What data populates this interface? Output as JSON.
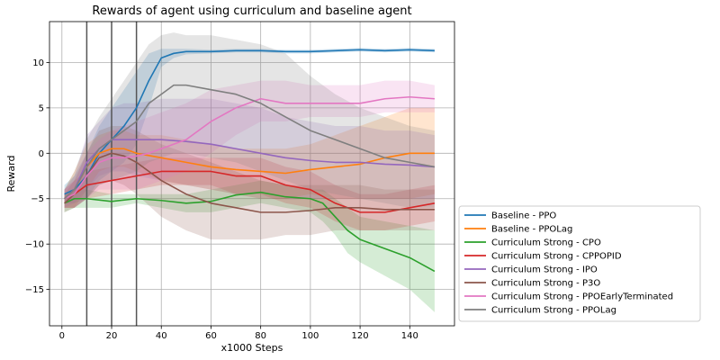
{
  "chart_data": {
    "type": "line",
    "title": "Rewards of agent using curriculum and baseline agent",
    "xlabel": "x1000 Steps",
    "ylabel": "Reward",
    "xlim": [
      -5,
      158
    ],
    "ylim": [
      -19,
      14.5
    ],
    "xticks": [
      0,
      20,
      40,
      60,
      80,
      100,
      120,
      140
    ],
    "yticks": [
      -15,
      -10,
      -5,
      0,
      5,
      10
    ],
    "grid": true,
    "legend_position": "outside-right-bottom",
    "vlines": [
      10,
      20,
      30
    ],
    "series": [
      {
        "name": "Baseline - PPO",
        "color": "#1f77b4",
        "x": [
          1,
          5,
          10,
          15,
          20,
          25,
          30,
          35,
          40,
          45,
          50,
          60,
          70,
          80,
          90,
          100,
          110,
          120,
          130,
          140,
          150
        ],
        "y": [
          -4.5,
          -4,
          -2.5,
          0,
          1.5,
          3,
          5,
          8,
          10.5,
          11,
          11.2,
          11.2,
          11.3,
          11.3,
          11.2,
          11.2,
          11.3,
          11.4,
          11.3,
          11.4,
          11.3
        ],
        "band": [
          [
            -5.5,
            -3.5
          ],
          [
            -5.5,
            -2.5
          ],
          [
            -5,
            0
          ],
          [
            -3,
            3
          ],
          [
            -2,
            5
          ],
          [
            -1,
            7
          ],
          [
            1,
            9
          ],
          [
            5,
            11
          ],
          [
            9.5,
            11.5
          ],
          [
            10.5,
            11.5
          ],
          [
            10.9,
            11.5
          ],
          [
            11,
            11.4
          ],
          [
            11.1,
            11.5
          ],
          [
            11.1,
            11.5
          ],
          [
            11,
            11.4
          ],
          [
            11,
            11.4
          ],
          [
            11.1,
            11.5
          ],
          [
            11.2,
            11.6
          ],
          [
            11.1,
            11.5
          ],
          [
            11.2,
            11.6
          ],
          [
            11.1,
            11.5
          ]
        ]
      },
      {
        "name": "Baseline - PPOLag",
        "color": "#ff7f0e",
        "x": [
          1,
          5,
          10,
          15,
          20,
          25,
          30,
          40,
          50,
          60,
          70,
          80,
          90,
          100,
          110,
          120,
          130,
          140,
          150
        ],
        "y": [
          -5,
          -4,
          -1.5,
          0,
          0.5,
          0.5,
          0,
          -0.5,
          -1,
          -1.5,
          -1.8,
          -2,
          -2.2,
          -1.8,
          -1.5,
          -1.2,
          -0.5,
          0,
          0
        ],
        "band": [
          [
            -6,
            -4
          ],
          [
            -6,
            -2
          ],
          [
            -4,
            1
          ],
          [
            -2,
            2
          ],
          [
            -1.5,
            2.5
          ],
          [
            -1.5,
            2.5
          ],
          [
            -2,
            2
          ],
          [
            -3,
            2
          ],
          [
            -3.5,
            1.5
          ],
          [
            -4,
            1
          ],
          [
            -4.5,
            0.5
          ],
          [
            -5,
            0.5
          ],
          [
            -5,
            0.5
          ],
          [
            -4.5,
            1
          ],
          [
            -5,
            2
          ],
          [
            -5,
            3
          ],
          [
            -5,
            4
          ],
          [
            -5,
            5
          ],
          [
            -4.5,
            5
          ]
        ]
      },
      {
        "name": "Curriculum Strong - CPO",
        "color": "#2ca02c",
        "x": [
          1,
          5,
          10,
          20,
          30,
          40,
          50,
          60,
          70,
          80,
          90,
          100,
          105,
          110,
          115,
          120,
          130,
          140,
          150
        ],
        "y": [
          -5.5,
          -5,
          -5,
          -5.3,
          -5,
          -5.2,
          -5.5,
          -5.3,
          -4.6,
          -4.3,
          -4.8,
          -5,
          -5.5,
          -7,
          -8.5,
          -9.5,
          -10.5,
          -11.5,
          -13
        ],
        "band": [
          [
            -6.5,
            -4.5
          ],
          [
            -6,
            -4
          ],
          [
            -6,
            -4
          ],
          [
            -6,
            -4.5
          ],
          [
            -5.5,
            -4.5
          ],
          [
            -6,
            -4.5
          ],
          [
            -6.5,
            -4.5
          ],
          [
            -6.5,
            -4
          ],
          [
            -6,
            -3.5
          ],
          [
            -5.5,
            -3
          ],
          [
            -6,
            -3.5
          ],
          [
            -6.5,
            -4
          ],
          [
            -7.5,
            -4
          ],
          [
            -9,
            -5
          ],
          [
            -11,
            -6
          ],
          [
            -12,
            -7
          ],
          [
            -13.5,
            -7.5
          ],
          [
            -15,
            -8
          ],
          [
            -17.5,
            -8.5
          ]
        ]
      },
      {
        "name": "Curriculum Strong - CPPOPID",
        "color": "#d62728",
        "x": [
          1,
          5,
          10,
          20,
          30,
          40,
          50,
          60,
          70,
          80,
          90,
          100,
          110,
          120,
          130,
          140,
          150
        ],
        "y": [
          -5,
          -4.5,
          -3.5,
          -3,
          -2.5,
          -2,
          -2,
          -2,
          -2.5,
          -2.5,
          -3.5,
          -4,
          -5.5,
          -6.5,
          -6.5,
          -6,
          -5.5
        ],
        "band": [
          [
            -6,
            -4
          ],
          [
            -6,
            -3
          ],
          [
            -5,
            -2
          ],
          [
            -4.5,
            -1.5
          ],
          [
            -4,
            -1
          ],
          [
            -3.5,
            -0.5
          ],
          [
            -3.5,
            -0.5
          ],
          [
            -3.5,
            -0.5
          ],
          [
            -4.5,
            -0.5
          ],
          [
            -4.5,
            -0.5
          ],
          [
            -5.5,
            -1.5
          ],
          [
            -6,
            -2
          ],
          [
            -7.5,
            -3.5
          ],
          [
            -8.5,
            -4.5
          ],
          [
            -8.5,
            -4.5
          ],
          [
            -8,
            -4
          ],
          [
            -7.5,
            -3.5
          ]
        ]
      },
      {
        "name": "Curriculum Strong - IPO",
        "color": "#9467bd",
        "x": [
          1,
          5,
          10,
          15,
          20,
          25,
          30,
          40,
          50,
          60,
          70,
          80,
          90,
          100,
          110,
          120,
          130,
          140,
          150
        ],
        "y": [
          -5,
          -4,
          -1,
          0.5,
          1.5,
          1.5,
          1.5,
          1.5,
          1.3,
          1,
          0.5,
          0,
          -0.5,
          -0.8,
          -1,
          -1,
          -1.2,
          -1.3,
          -1.5
        ],
        "band": [
          [
            -6,
            -4
          ],
          [
            -5.5,
            -2.5
          ],
          [
            -4,
            2
          ],
          [
            -2.5,
            3.5
          ],
          [
            -2,
            5
          ],
          [
            -2,
            5.5
          ],
          [
            -2.5,
            5.5
          ],
          [
            -3,
            6
          ],
          [
            -3.5,
            6
          ],
          [
            -4,
            6
          ],
          [
            -4.5,
            5.5
          ],
          [
            -5,
            5
          ],
          [
            -5,
            4
          ],
          [
            -5,
            3.5
          ],
          [
            -5,
            3
          ],
          [
            -5,
            3
          ],
          [
            -5,
            2.5
          ],
          [
            -5,
            2.5
          ],
          [
            -5,
            2
          ]
        ]
      },
      {
        "name": "Curriculum Strong - P3O",
        "color": "#8c564b",
        "x": [
          1,
          5,
          10,
          15,
          20,
          25,
          30,
          40,
          50,
          60,
          70,
          80,
          90,
          100,
          110,
          120,
          130,
          140,
          150
        ],
        "y": [
          -5.5,
          -4.5,
          -2.5,
          -0.5,
          0,
          -0.3,
          -1,
          -3,
          -4.5,
          -5.5,
          -6,
          -6.5,
          -6.5,
          -6.3,
          -6,
          -6,
          -6.2,
          -6.2,
          -6.2
        ],
        "band": [
          [
            -6.5,
            -4.5
          ],
          [
            -6,
            -3
          ],
          [
            -5,
            0
          ],
          [
            -3.5,
            2.5
          ],
          [
            -3,
            3
          ],
          [
            -3.5,
            3
          ],
          [
            -4.5,
            2.5
          ],
          [
            -7,
            1
          ],
          [
            -8.5,
            0
          ],
          [
            -9.5,
            -1
          ],
          [
            -9.5,
            -2
          ],
          [
            -9.5,
            -3
          ],
          [
            -9,
            -3.5
          ],
          [
            -9,
            -3.5
          ],
          [
            -8.5,
            -3.5
          ],
          [
            -8.5,
            -3.5
          ],
          [
            -8.5,
            -4
          ],
          [
            -8.5,
            -4
          ],
          [
            -8.5,
            -4
          ]
        ]
      },
      {
        "name": "Curriculum Strong - PPOEarlyTerminated",
        "color": "#e377c2",
        "x": [
          1,
          5,
          10,
          15,
          20,
          25,
          30,
          35,
          40,
          50,
          60,
          70,
          80,
          90,
          100,
          110,
          120,
          130,
          140,
          150
        ],
        "y": [
          -5,
          -4.5,
          -2.5,
          -1,
          -0.5,
          -0.5,
          -0.3,
          0,
          0.5,
          1.5,
          3.5,
          5,
          6,
          5.5,
          5.5,
          5.5,
          5.5,
          6,
          6.2,
          6
        ],
        "band": [
          [
            -6,
            -4
          ],
          [
            -6,
            -3
          ],
          [
            -5,
            0
          ],
          [
            -4,
            1.5
          ],
          [
            -4,
            2.5
          ],
          [
            -4,
            3
          ],
          [
            -4,
            3.5
          ],
          [
            -3.5,
            4
          ],
          [
            -3,
            4.5
          ],
          [
            -2,
            5.5
          ],
          [
            0,
            7
          ],
          [
            2,
            7.5
          ],
          [
            3.5,
            8
          ],
          [
            3.5,
            8
          ],
          [
            4,
            7.5
          ],
          [
            4,
            7.5
          ],
          [
            4,
            7.5
          ],
          [
            4.5,
            8
          ],
          [
            4.5,
            8
          ],
          [
            4.5,
            7.5
          ]
        ]
      },
      {
        "name": "Curriculum Strong - PPOLag",
        "color": "#7f7f7f",
        "x": [
          1,
          5,
          10,
          15,
          20,
          25,
          30,
          35,
          40,
          45,
          50,
          60,
          70,
          80,
          90,
          100,
          110,
          120,
          130,
          140,
          150
        ],
        "y": [
          -5,
          -4,
          -1.5,
          0.5,
          1.5,
          2.5,
          3.5,
          5.5,
          6.5,
          7.5,
          7.5,
          7,
          6.5,
          5.5,
          4,
          2.5,
          1.5,
          0.5,
          -0.5,
          -1,
          -1.5
        ],
        "band": [
          [
            -6,
            -4
          ],
          [
            -6,
            -2
          ],
          [
            -5,
            1.5
          ],
          [
            -3.5,
            4
          ],
          [
            -3,
            6
          ],
          [
            -2.5,
            8
          ],
          [
            -2,
            10
          ],
          [
            -1,
            12
          ],
          [
            -0.5,
            13
          ],
          [
            0,
            13.3
          ],
          [
            0,
            13
          ],
          [
            -0.5,
            13
          ],
          [
            -1,
            12.5
          ],
          [
            -2,
            12
          ],
          [
            -3,
            11
          ],
          [
            -4,
            8.5
          ],
          [
            -4.5,
            6.5
          ],
          [
            -5,
            5
          ],
          [
            -5.5,
            4
          ],
          [
            -6,
            3
          ],
          [
            -6,
            2.5
          ]
        ]
      }
    ]
  }
}
